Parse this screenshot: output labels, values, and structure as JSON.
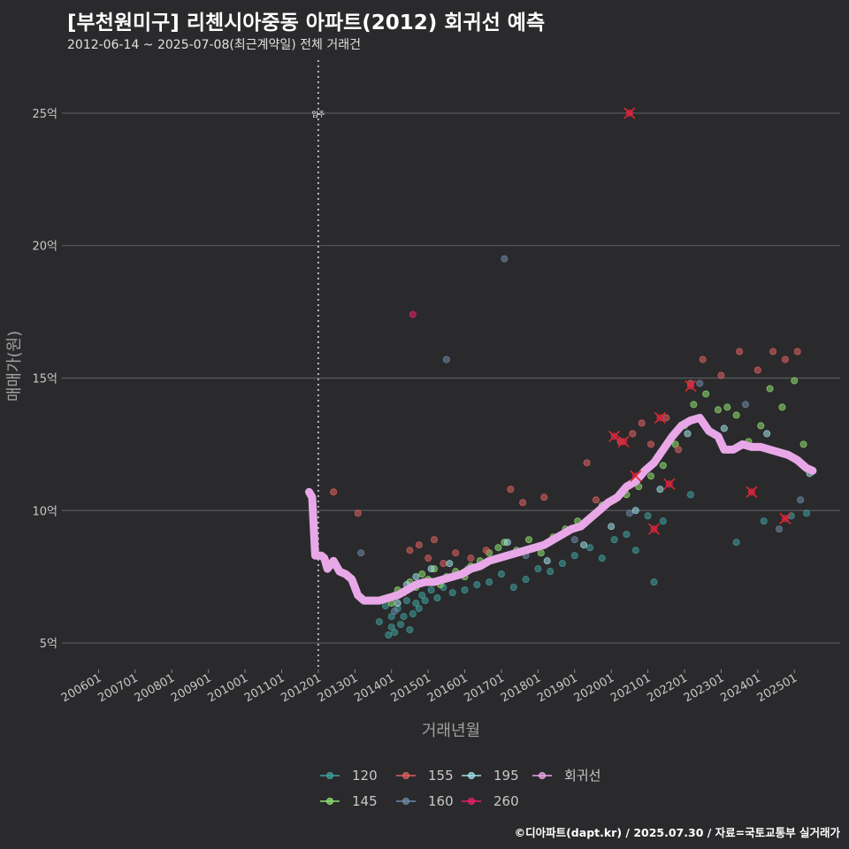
{
  "header": {
    "title": "[부천원미구] 리첸시아중동 아파트(2012) 회귀선 예측",
    "subtitle": "2012-06-14 ~ 2025-07-08(최근계약일) 전체 거래건"
  },
  "footer": {
    "credit": "©디아파트(dapt.kr) / 2025.07.30 / 자료=국토교통부 실거래가"
  },
  "chart_data": {
    "type": "scatter",
    "title": "[부천원미구] 리첸시아중동 아파트(2012) 회귀선 예측",
    "subtitle": "2012-06-14 ~ 2025-07-08(최근계약일) 전체 거래건",
    "xlabel": "거래년월",
    "ylabel": "매매가(원)",
    "x_ticks": [
      "200601",
      "200701",
      "200801",
      "200901",
      "201001",
      "201101",
      "201201",
      "201301",
      "201401",
      "201501",
      "201601",
      "201701",
      "201801",
      "201901",
      "202001",
      "202101",
      "202201",
      "202301",
      "202401",
      "202501"
    ],
    "x_range": [
      "2005-01",
      "2026-04"
    ],
    "y_ticks": [
      {
        "value": 5,
        "label": "5억"
      },
      {
        "value": 10,
        "label": "10억"
      },
      {
        "value": 15,
        "label": "15억"
      },
      {
        "value": 20,
        "label": "20억"
      },
      {
        "value": 25,
        "label": "25억"
      }
    ],
    "ylim": [
      4.0,
      27.0
    ],
    "grid": "horizontal",
    "legend_position": "bottom",
    "occupancy_marker": {
      "date": "2012-01",
      "label": "입주"
    },
    "colors": {
      "120": "#3fa0a0",
      "145": "#8fe070",
      "155": "#e06060",
      "160": "#6e8aa8",
      "195": "#9ee0e6",
      "260": "#e8206a",
      "회귀선": "#e8a8e8"
    },
    "series": [
      {
        "name": "120",
        "points": [
          [
            "2013-09",
            5.8
          ],
          [
            "2013-11",
            6.4
          ],
          [
            "2013-12",
            5.3
          ],
          [
            "2014-01",
            5.6
          ],
          [
            "2014-01",
            6.0
          ],
          [
            "2014-02",
            5.4
          ],
          [
            "2014-03",
            6.3
          ],
          [
            "2014-04",
            5.7
          ],
          [
            "2014-05",
            6.0
          ],
          [
            "2014-06",
            6.6
          ],
          [
            "2014-07",
            5.5
          ],
          [
            "2014-08",
            6.1
          ],
          [
            "2014-09",
            6.5
          ],
          [
            "2014-10",
            6.3
          ],
          [
            "2014-11",
            6.8
          ],
          [
            "2014-12",
            6.6
          ],
          [
            "2015-02",
            7.0
          ],
          [
            "2015-04",
            6.7
          ],
          [
            "2015-06",
            7.1
          ],
          [
            "2015-09",
            6.9
          ],
          [
            "2016-01",
            7.0
          ],
          [
            "2016-05",
            7.2
          ],
          [
            "2016-09",
            7.3
          ],
          [
            "2017-01",
            7.6
          ],
          [
            "2017-05",
            7.1
          ],
          [
            "2017-09",
            7.4
          ],
          [
            "2018-01",
            7.8
          ],
          [
            "2018-05",
            7.7
          ],
          [
            "2018-09",
            8.0
          ],
          [
            "2019-01",
            8.3
          ],
          [
            "2019-06",
            8.6
          ],
          [
            "2019-10",
            8.2
          ],
          [
            "2020-02",
            8.9
          ],
          [
            "2020-06",
            9.1
          ],
          [
            "2020-09",
            8.5
          ],
          [
            "2021-01",
            9.8
          ],
          [
            "2021-03",
            7.3
          ],
          [
            "2021-06",
            9.6
          ],
          [
            "2022-03",
            10.6
          ],
          [
            "2023-06",
            8.8
          ],
          [
            "2024-03",
            9.6
          ],
          [
            "2024-12",
            9.8
          ],
          [
            "2025-05",
            9.9
          ]
        ]
      },
      {
        "name": "145",
        "points": [
          [
            "2014-01",
            6.5
          ],
          [
            "2014-02",
            6.8
          ],
          [
            "2014-03",
            7.0
          ],
          [
            "2014-05",
            6.9
          ],
          [
            "2014-07",
            7.3
          ],
          [
            "2014-09",
            7.1
          ],
          [
            "2014-11",
            7.6
          ],
          [
            "2015-01",
            7.4
          ],
          [
            "2015-03",
            7.8
          ],
          [
            "2015-05",
            7.2
          ],
          [
            "2015-07",
            7.5
          ],
          [
            "2015-10",
            7.7
          ],
          [
            "2016-01",
            7.5
          ],
          [
            "2016-03",
            7.9
          ],
          [
            "2016-06",
            8.1
          ],
          [
            "2016-09",
            8.4
          ],
          [
            "2016-12",
            8.6
          ],
          [
            "2017-02",
            8.8
          ],
          [
            "2017-06",
            8.5
          ],
          [
            "2017-10",
            8.9
          ],
          [
            "2018-02",
            8.4
          ],
          [
            "2018-06",
            9.0
          ],
          [
            "2018-10",
            9.3
          ],
          [
            "2019-02",
            9.6
          ],
          [
            "2019-06",
            9.7
          ],
          [
            "2019-10",
            10.2
          ],
          [
            "2020-02",
            10.4
          ],
          [
            "2020-06",
            10.6
          ],
          [
            "2020-10",
            10.9
          ],
          [
            "2021-02",
            11.3
          ],
          [
            "2021-06",
            11.7
          ],
          [
            "2021-10",
            12.5
          ],
          [
            "2022-01",
            13.2
          ],
          [
            "2022-04",
            14.0
          ],
          [
            "2022-08",
            14.4
          ],
          [
            "2022-12",
            13.8
          ],
          [
            "2023-03",
            13.9
          ],
          [
            "2023-06",
            13.6
          ],
          [
            "2023-10",
            12.6
          ],
          [
            "2024-02",
            13.2
          ],
          [
            "2024-05",
            14.6
          ],
          [
            "2024-09",
            13.9
          ],
          [
            "2025-01",
            14.9
          ],
          [
            "2025-04",
            12.5
          ]
        ]
      },
      {
        "name": "155",
        "points": [
          [
            "2012-06",
            10.7
          ],
          [
            "2013-02",
            9.9
          ],
          [
            "2014-07",
            8.5
          ],
          [
            "2014-10",
            8.7
          ],
          [
            "2015-01",
            8.2
          ],
          [
            "2015-03",
            8.9
          ],
          [
            "2015-06",
            8.0
          ],
          [
            "2015-10",
            8.4
          ],
          [
            "2016-03",
            8.2
          ],
          [
            "2016-08",
            8.5
          ],
          [
            "2017-04",
            10.8
          ],
          [
            "2017-08",
            10.3
          ],
          [
            "2018-03",
            10.5
          ],
          [
            "2019-05",
            11.8
          ],
          [
            "2019-08",
            10.4
          ],
          [
            "2020-04",
            12.6
          ],
          [
            "2020-08",
            12.9
          ],
          [
            "2020-11",
            13.3
          ],
          [
            "2021-02",
            12.5
          ],
          [
            "2021-07",
            13.5
          ],
          [
            "2021-11",
            12.3
          ],
          [
            "2022-03",
            14.8
          ],
          [
            "2022-07",
            15.7
          ],
          [
            "2023-01",
            15.1
          ],
          [
            "2023-07",
            16.0
          ],
          [
            "2024-01",
            15.3
          ],
          [
            "2024-06",
            16.0
          ],
          [
            "2024-10",
            15.7
          ],
          [
            "2025-02",
            16.0
          ]
        ]
      },
      {
        "name": "160",
        "points": [
          [
            "2013-03",
            8.4
          ],
          [
            "2014-02",
            6.2
          ],
          [
            "2015-07",
            15.7
          ],
          [
            "2016-02",
            7.8
          ],
          [
            "2017-02",
            19.5
          ],
          [
            "2017-09",
            8.3
          ],
          [
            "2019-01",
            8.9
          ],
          [
            "2020-07",
            9.9
          ],
          [
            "2022-06",
            14.8
          ],
          [
            "2023-09",
            14.0
          ],
          [
            "2024-08",
            9.3
          ],
          [
            "2025-03",
            10.4
          ]
        ]
      },
      {
        "name": "195",
        "points": [
          [
            "2014-03",
            6.5
          ],
          [
            "2014-06",
            7.2
          ],
          [
            "2014-09",
            7.5
          ],
          [
            "2015-02",
            7.8
          ],
          [
            "2015-08",
            8.0
          ],
          [
            "2016-06",
            7.9
          ],
          [
            "2017-03",
            8.8
          ],
          [
            "2018-04",
            8.1
          ],
          [
            "2019-04",
            8.7
          ],
          [
            "2020-01",
            9.4
          ],
          [
            "2020-09",
            10.0
          ],
          [
            "2021-05",
            10.8
          ],
          [
            "2022-02",
            12.9
          ],
          [
            "2023-02",
            13.1
          ],
          [
            "2024-04",
            12.9
          ],
          [
            "2025-06",
            11.4
          ]
        ]
      },
      {
        "name": "260",
        "points": [
          [
            "2014-08",
            17.4
          ],
          [
            "2020-02",
            12.8
          ],
          [
            "2020-05",
            12.6
          ],
          [
            "2020-07",
            25.0
          ],
          [
            "2020-09",
            11.3
          ],
          [
            "2021-03",
            9.3
          ],
          [
            "2021-05",
            13.5
          ],
          [
            "2021-08",
            11.0
          ],
          [
            "2022-03",
            14.7
          ],
          [
            "2023-11",
            10.7
          ],
          [
            "2024-10",
            9.7
          ]
        ]
      },
      {
        "name": "회귀선",
        "points": [
          [
            "2011-10",
            10.7
          ],
          [
            "2011-11",
            10.5
          ],
          [
            "2011-12",
            8.3
          ],
          [
            "2012-02",
            8.3
          ],
          [
            "2012-03",
            8.2
          ],
          [
            "2012-04",
            7.8
          ],
          [
            "2012-06",
            8.1
          ],
          [
            "2012-08",
            7.7
          ],
          [
            "2012-10",
            7.6
          ],
          [
            "2012-12",
            7.4
          ],
          [
            "2013-02",
            6.8
          ],
          [
            "2013-04",
            6.6
          ],
          [
            "2013-06",
            6.6
          ],
          [
            "2013-09",
            6.6
          ],
          [
            "2013-12",
            6.7
          ],
          [
            "2014-03",
            6.8
          ],
          [
            "2014-06",
            7.0
          ],
          [
            "2014-09",
            7.2
          ],
          [
            "2014-12",
            7.3
          ],
          [
            "2015-03",
            7.3
          ],
          [
            "2015-06",
            7.4
          ],
          [
            "2015-09",
            7.5
          ],
          [
            "2015-12",
            7.6
          ],
          [
            "2016-03",
            7.8
          ],
          [
            "2016-06",
            7.9
          ],
          [
            "2016-09",
            8.1
          ],
          [
            "2016-12",
            8.2
          ],
          [
            "2017-03",
            8.3
          ],
          [
            "2017-06",
            8.4
          ],
          [
            "2017-09",
            8.5
          ],
          [
            "2017-12",
            8.6
          ],
          [
            "2018-03",
            8.7
          ],
          [
            "2018-06",
            8.9
          ],
          [
            "2018-09",
            9.1
          ],
          [
            "2018-12",
            9.3
          ],
          [
            "2019-03",
            9.4
          ],
          [
            "2019-06",
            9.7
          ],
          [
            "2019-09",
            10.0
          ],
          [
            "2019-12",
            10.3
          ],
          [
            "2020-03",
            10.5
          ],
          [
            "2020-06",
            10.9
          ],
          [
            "2020-09",
            11.1
          ],
          [
            "2020-12",
            11.5
          ],
          [
            "2021-03",
            11.8
          ],
          [
            "2021-06",
            12.3
          ],
          [
            "2021-09",
            12.8
          ],
          [
            "2021-12",
            13.2
          ],
          [
            "2022-03",
            13.4
          ],
          [
            "2022-06",
            13.5
          ],
          [
            "2022-09",
            13.0
          ],
          [
            "2022-12",
            12.8
          ],
          [
            "2023-02",
            12.3
          ],
          [
            "2023-05",
            12.3
          ],
          [
            "2023-08",
            12.5
          ],
          [
            "2023-11",
            12.4
          ],
          [
            "2024-02",
            12.4
          ],
          [
            "2024-05",
            12.3
          ],
          [
            "2024-08",
            12.2
          ],
          [
            "2024-11",
            12.1
          ],
          [
            "2025-02",
            11.9
          ],
          [
            "2025-05",
            11.6
          ],
          [
            "2025-07",
            11.5
          ]
        ]
      }
    ],
    "crossed_points": [
      [
        "2020-07",
        25.0
      ],
      [
        "2020-02",
        12.8
      ],
      [
        "2020-05",
        12.6
      ],
      [
        "2020-09",
        11.3
      ],
      [
        "2021-03",
        9.3
      ],
      [
        "2021-05",
        13.5
      ],
      [
        "2021-08",
        11.0
      ],
      [
        "2022-03",
        14.7
      ],
      [
        "2023-11",
        10.7
      ],
      [
        "2024-10",
        9.7
      ]
    ],
    "legend": [
      "120",
      "155",
      "195",
      "회귀선",
      "145",
      "160",
      "260"
    ]
  }
}
